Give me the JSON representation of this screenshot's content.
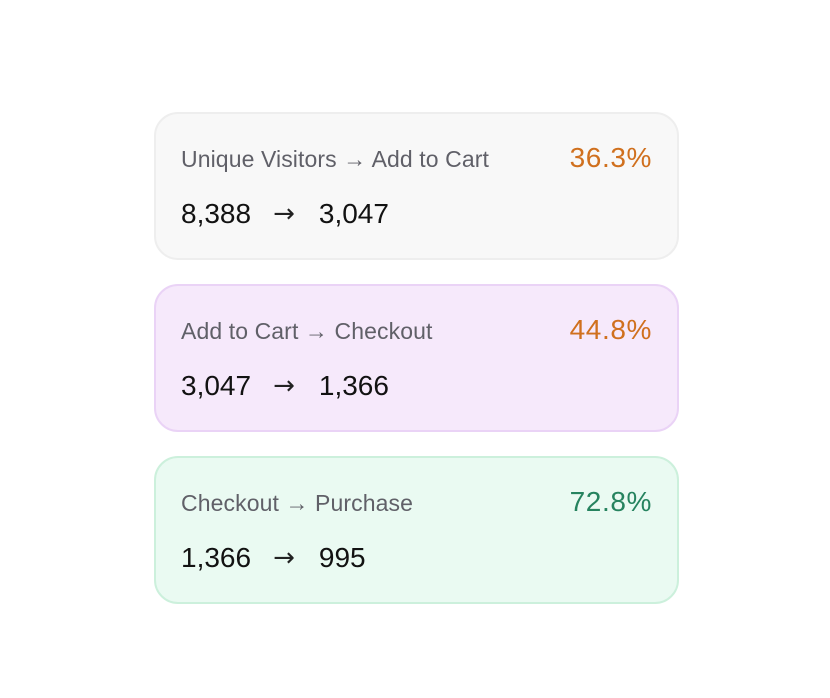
{
  "funnel": {
    "steps": [
      {
        "label": "Unique Visitors → Add to Cart",
        "rate": "36.3%",
        "from": "8,388",
        "arrow": "→",
        "to": "3,047",
        "card_color": "#f8f8f8",
        "rate_color": "#d0701e"
      },
      {
        "label": "Add to Cart → Checkout",
        "rate": "44.8%",
        "from": "3,047",
        "arrow": "→",
        "to": "1,366",
        "card_color": "#f6e9fb",
        "rate_color": "#d0701e"
      },
      {
        "label": "Checkout → Purchase",
        "rate": "72.8%",
        "from": "1,366",
        "arrow": "→",
        "to": "995",
        "card_color": "#eafaf2",
        "rate_color": "#26835f"
      }
    ]
  }
}
